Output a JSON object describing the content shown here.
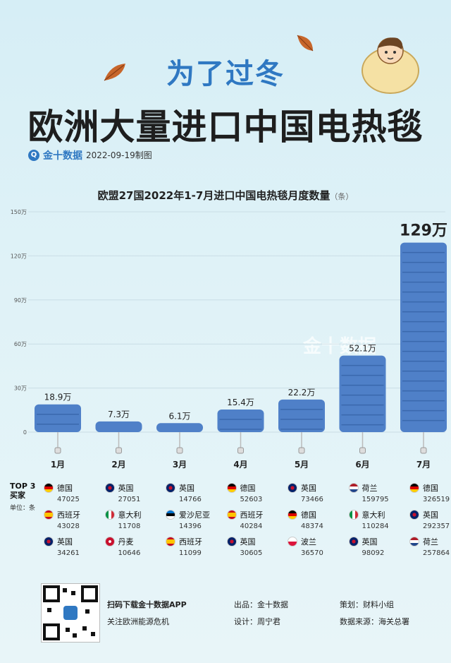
{
  "header": {
    "subtitle": "为了过冬",
    "title": "欧洲大量进口中国电热毯",
    "brand": "金十数据",
    "date": "2022-09-19制图"
  },
  "chart_data": {
    "type": "bar",
    "title": "欧盟27国2022年1-7月进口中国电热毯月度数量",
    "title_unit": "（条）",
    "categories": [
      "1月",
      "2月",
      "3月",
      "4月",
      "5月",
      "6月",
      "7月"
    ],
    "values": [
      189000,
      73000,
      61000,
      154000,
      222000,
      521000,
      1290000
    ],
    "value_labels": [
      "18.9万",
      "7.3万",
      "6.1万",
      "15.4万",
      "22.2万",
      "52.1万",
      "129万"
    ],
    "ylim": [
      0,
      1500000
    ],
    "yticks": [
      0,
      300000,
      600000,
      900000,
      1200000,
      1500000
    ],
    "ytick_labels": [
      "0",
      "30万",
      "60万",
      "90万",
      "120万",
      "150万"
    ],
    "bar_color": "#4f80c8"
  },
  "watermark": "金十数据",
  "top3": {
    "label": "TOP 3\n买家",
    "unit": "单位：条",
    "months": [
      [
        {
          "country": "德国",
          "flag": "de",
          "value": "47025"
        },
        {
          "country": "西班牙",
          "flag": "es",
          "value": "43028"
        },
        {
          "country": "英国",
          "flag": "gb",
          "value": "34261"
        }
      ],
      [
        {
          "country": "英国",
          "flag": "gb",
          "value": "27051"
        },
        {
          "country": "意大利",
          "flag": "it",
          "value": "11708"
        },
        {
          "country": "丹麦",
          "flag": "dk",
          "value": "10646"
        }
      ],
      [
        {
          "country": "英国",
          "flag": "gb",
          "value": "14766"
        },
        {
          "country": "爱沙尼亚",
          "flag": "ee",
          "value": "14396"
        },
        {
          "country": "西班牙",
          "flag": "es",
          "value": "11099"
        }
      ],
      [
        {
          "country": "德国",
          "flag": "de",
          "value": "52603"
        },
        {
          "country": "西班牙",
          "flag": "es",
          "value": "40284"
        },
        {
          "country": "英国",
          "flag": "gb",
          "value": "30605"
        }
      ],
      [
        {
          "country": "英国",
          "flag": "gb",
          "value": "73466"
        },
        {
          "country": "德国",
          "flag": "de",
          "value": "48374"
        },
        {
          "country": "波兰",
          "flag": "pl",
          "value": "36570"
        }
      ],
      [
        {
          "country": "荷兰",
          "flag": "nl",
          "value": "159795"
        },
        {
          "country": "意大利",
          "flag": "it",
          "value": "110284"
        },
        {
          "country": "英国",
          "flag": "gb",
          "value": "98092"
        }
      ],
      [
        {
          "country": "德国",
          "flag": "de",
          "value": "326519"
        },
        {
          "country": "英国",
          "flag": "gb",
          "value": "292357"
        },
        {
          "country": "荷兰",
          "flag": "nl",
          "value": "257864"
        }
      ]
    ]
  },
  "footer": {
    "download": "扫码下载金十数据APP",
    "follow": "关注欧洲能源危机",
    "producer": "出品：金十数据",
    "designer": "设计：周宁君",
    "planner": "策划：财料小组",
    "source": "数据来源：海关总署"
  }
}
